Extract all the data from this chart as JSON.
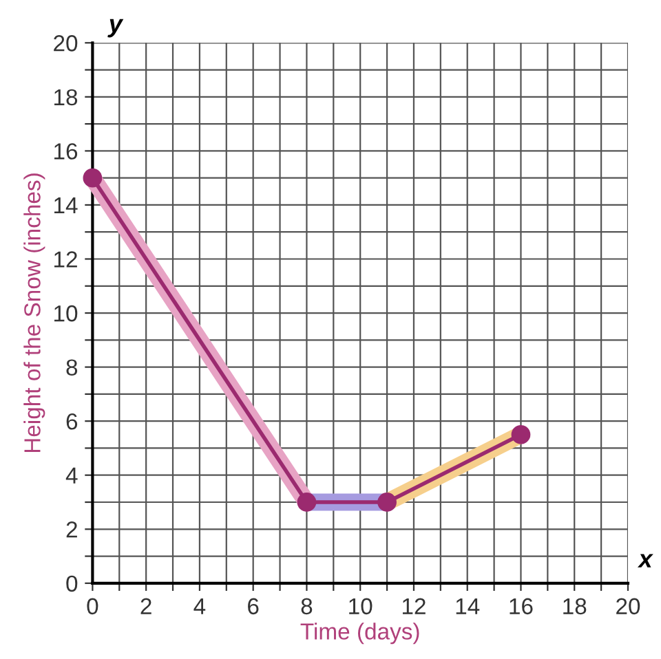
{
  "chart_data": {
    "type": "line",
    "xlabel": "Time (days)",
    "ylabel": "Height of the Snow (inches)",
    "annotations": [
      "x",
      "y"
    ],
    "series": [
      {
        "x": [
          0,
          8,
          11,
          16
        ],
        "values": [
          15,
          3,
          3,
          5.5
        ],
        "color": "#9b2a6f",
        "marker": "circle"
      },
      {
        "x": [
          0,
          8
        ],
        "values": [
          15,
          3
        ],
        "color": "#e7a3c4",
        "marker": "none"
      },
      {
        "x": [
          8,
          11
        ],
        "values": [
          3,
          3
        ],
        "color": "#a69be0",
        "marker": "none"
      },
      {
        "x": [
          11,
          16
        ],
        "values": [
          3,
          5.5
        ],
        "color": "#f6cf8c",
        "marker": "none"
      }
    ],
    "xlim": [
      0,
      20
    ],
    "ylim": [
      0,
      20
    ],
    "xticks": [
      0,
      {
        "value": 1,
        "label": null
      },
      2,
      {
        "value": 3,
        "label": null
      },
      4,
      {
        "value": 5,
        "label": null
      },
      6,
      {
        "value": 7,
        "label": null
      },
      8,
      {
        "value": 9,
        "label": null
      },
      10,
      {
        "value": 11,
        "label": null
      },
      12,
      {
        "value": 13,
        "label": null
      },
      14,
      {
        "value": 15,
        "label": null
      },
      16,
      {
        "value": 17,
        "label": null
      },
      18,
      {
        "value": 19,
        "label": null
      },
      20
    ],
    "yticks": [
      0,
      {
        "value": 1,
        "label": null
      },
      2,
      {
        "value": 3,
        "label": null
      },
      4,
      {
        "value": 5,
        "label": null
      },
      6,
      {
        "value": 7,
        "label": null
      },
      8,
      {
        "value": 9,
        "label": null
      },
      10,
      {
        "value": 11,
        "label": null
      },
      12,
      {
        "value": 13,
        "label": null
      },
      14,
      {
        "value": 15,
        "label": null
      },
      16,
      {
        "value": 17,
        "label": null
      },
      18,
      {
        "value": 19,
        "label": null
      },
      20
    ],
    "grid": true,
    "line_style": "solid"
  }
}
